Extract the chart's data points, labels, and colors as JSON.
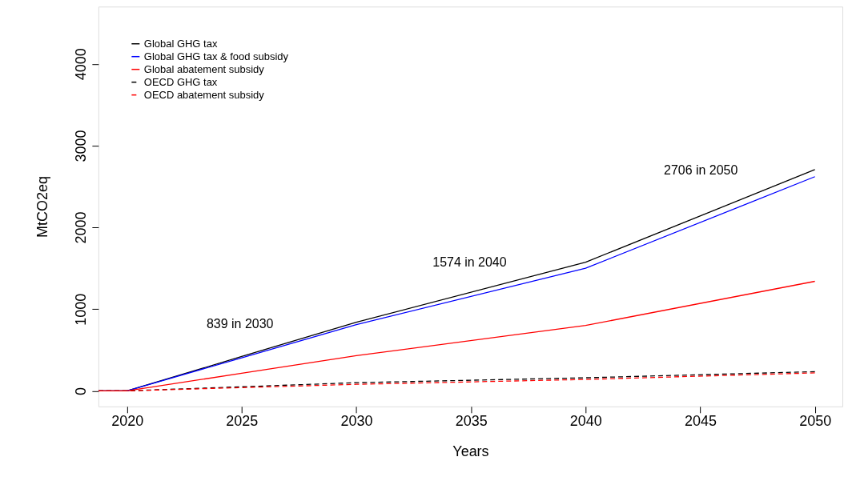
{
  "chart_data": {
    "type": "line",
    "xlabel": "Years",
    "ylabel": "MtCO2eq",
    "xlim": [
      2018.75,
      2051.2
    ],
    "xticks": [
      2020,
      2025,
      2030,
      2035,
      2040,
      2045,
      2050
    ],
    "ylim": [
      -190,
      4700
    ],
    "yticks": [
      0,
      1000,
      2000,
      3000,
      4000
    ],
    "grid": false,
    "legend": "top left",
    "marker": "none",
    "x": [
      2018.75,
      2020,
      2025,
      2030,
      2040,
      2050
    ],
    "series": [
      {
        "name": "Global GHG tax",
        "color": "#000000",
        "line_style": "solid",
        "values": [
          0,
          0,
          420,
          839,
          1574,
          2706
        ]
      },
      {
        "name": "Global GHG tax & food subsidy",
        "color": "#0000ff",
        "line_style": "solid",
        "values": [
          0,
          0,
          405,
          810,
          1500,
          2620
        ]
      },
      {
        "name": "Global abatement subsidy",
        "color": "#ff0000",
        "line_style": "solid",
        "values": [
          0,
          0,
          215,
          430,
          800,
          1340
        ]
      },
      {
        "name": "OECD GHG tax",
        "color": "#000000",
        "line_style": "dashed",
        "values": [
          0,
          0,
          50,
          100,
          160,
          235
        ]
      },
      {
        "name": "OECD abatement subsidy",
        "color": "#ff0000",
        "line_style": "dashed",
        "values": [
          0,
          0,
          40,
          80,
          140,
          220
        ]
      }
    ],
    "annotations": [
      "839 in 2030",
      "1574 in 2040",
      "2706 in 2050"
    ]
  }
}
